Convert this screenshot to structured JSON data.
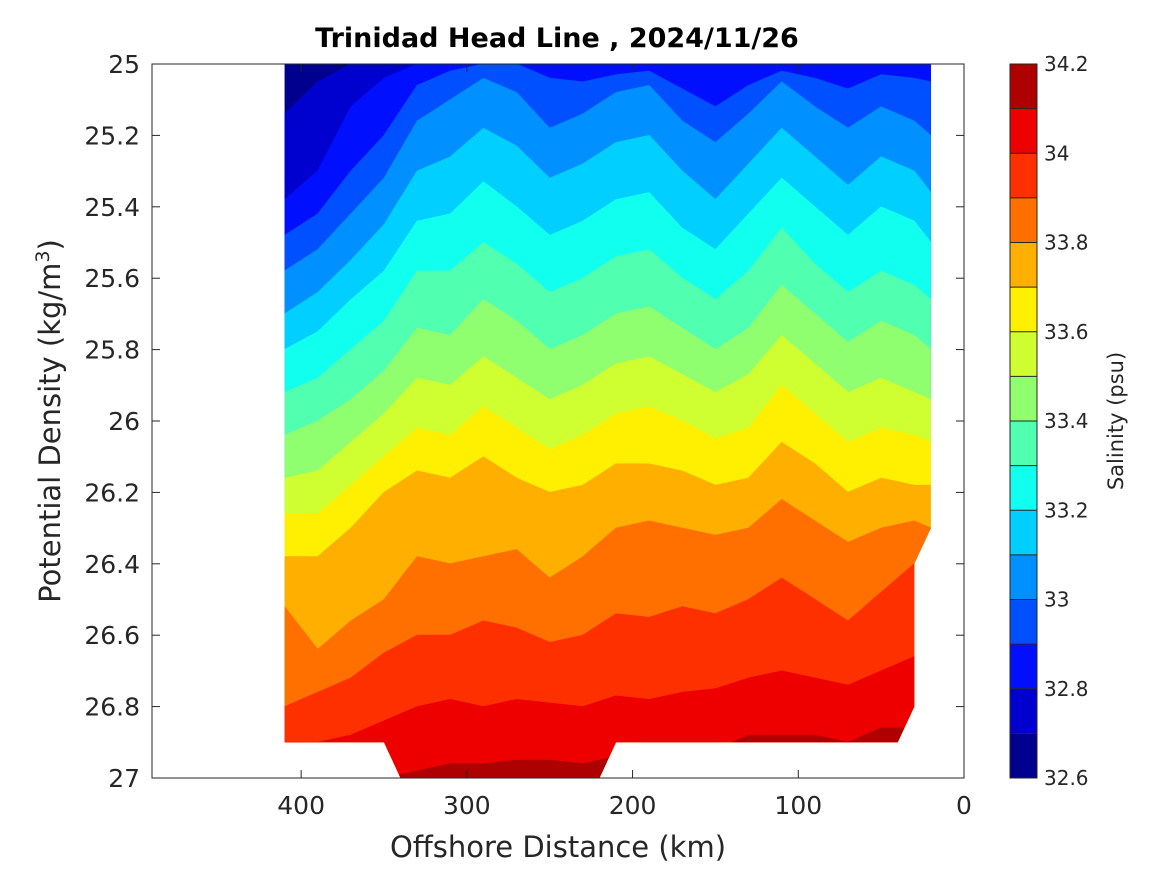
{
  "chart_data": {
    "type": "contour",
    "title": "Trinidad Head Line , 2024/11/26",
    "xlabel": "Offshore Distance (km)",
    "ylabel": "Potential Density (kg/m",
    "ylabel_sup": "3",
    "ylabel_end": ")",
    "xlim": [
      490,
      0
    ],
    "ylim": [
      25,
      27
    ],
    "xticks": [
      400,
      300,
      200,
      100,
      0
    ],
    "yticks": [
      25,
      25.2,
      25.4,
      25.6,
      25.8,
      26,
      26.2,
      26.4,
      26.6,
      26.8,
      27
    ],
    "xtick_labels": [
      "400",
      "300",
      "200",
      "100",
      "0"
    ],
    "ytick_labels": [
      "25",
      "25.2",
      "25.4",
      "25.6",
      "25.8",
      "26",
      "26.2",
      "26.4",
      "26.6",
      "26.8",
      "27"
    ],
    "colorbar": {
      "label": "Salinity (psu)",
      "range": [
        32.6,
        34.2
      ],
      "levels": [
        32.6,
        32.7,
        32.8,
        32.9,
        33.0,
        33.1,
        33.2,
        33.3,
        33.4,
        33.5,
        33.6,
        33.7,
        33.8,
        33.9,
        34.0,
        34.1,
        34.2
      ],
      "colors": [
        "#00008f",
        "#0000cf",
        "#0010ff",
        "#0050ff",
        "#0090ff",
        "#00cfff",
        "#10ffef",
        "#50ffaf",
        "#8fff70",
        "#cfff30",
        "#ffef00",
        "#ffaf00",
        "#ff7000",
        "#ff3000",
        "#ef0000",
        "#af0000"
      ],
      "ticks": [
        32.6,
        32.8,
        33,
        33.2,
        33.4,
        33.6,
        33.8,
        34,
        34.2
      ],
      "tick_labels": [
        "32.6",
        "32.8",
        "33",
        "33.2",
        "33.4",
        "33.6",
        "33.8",
        "34",
        "34.2"
      ]
    },
    "data_extent_km": [
      20,
      410
    ],
    "bottom_density_profile": [
      [
        410,
        26.9
      ],
      [
        350,
        26.9
      ],
      [
        340,
        27.0
      ],
      [
        220,
        27.0
      ],
      [
        210,
        26.9
      ],
      [
        40,
        26.9
      ],
      [
        30,
        26.8
      ],
      [
        30,
        26.4
      ],
      [
        20,
        26.3
      ],
      [
        20,
        25.0
      ]
    ],
    "stations_km": [
      410,
      390,
      370,
      350,
      330,
      310,
      290,
      270,
      250,
      230,
      210,
      190,
      170,
      150,
      130,
      110,
      90,
      70,
      50,
      30,
      20
    ],
    "isohaline_boundaries": [
      {
        "salinity": 32.7,
        "density": [
          25.14,
          25.05,
          25.0,
          25.0,
          25.0,
          25.0,
          25.0,
          25.0,
          25.0,
          25.0,
          25.0,
          25.0,
          25.0,
          25.0,
          25.0,
          25.0,
          25.0,
          25.0,
          25.0,
          25.0,
          25.0
        ]
      },
      {
        "salinity": 32.8,
        "density": [
          25.38,
          25.3,
          25.12,
          25.04,
          25.0,
          25.0,
          25.0,
          25.0,
          25.0,
          25.0,
          25.0,
          25.0,
          25.0,
          25.0,
          25.0,
          25.0,
          25.0,
          25.0,
          25.0,
          25.0,
          25.0
        ]
      },
      {
        "salinity": 32.9,
        "density": [
          25.48,
          25.42,
          25.3,
          25.2,
          25.06,
          25.02,
          25.0,
          25.0,
          25.04,
          25.05,
          25.03,
          25.02,
          25.07,
          25.12,
          25.06,
          25.02,
          25.04,
          25.07,
          25.03,
          25.04,
          25.05
        ]
      },
      {
        "salinity": 33.0,
        "density": [
          25.58,
          25.52,
          25.42,
          25.32,
          25.16,
          25.1,
          25.04,
          25.08,
          25.18,
          25.14,
          25.08,
          25.06,
          25.16,
          25.22,
          25.14,
          25.05,
          25.12,
          25.18,
          25.12,
          25.16,
          25.2
        ]
      },
      {
        "salinity": 33.1,
        "density": [
          25.7,
          25.64,
          25.55,
          25.45,
          25.3,
          25.26,
          25.18,
          25.23,
          25.32,
          25.28,
          25.22,
          25.2,
          25.3,
          25.38,
          25.28,
          25.18,
          25.26,
          25.34,
          25.26,
          25.3,
          25.36
        ]
      },
      {
        "salinity": 33.2,
        "density": [
          25.8,
          25.75,
          25.66,
          25.58,
          25.44,
          25.42,
          25.33,
          25.4,
          25.48,
          25.44,
          25.38,
          25.36,
          25.46,
          25.52,
          25.42,
          25.32,
          25.4,
          25.48,
          25.4,
          25.44,
          25.5
        ]
      },
      {
        "salinity": 33.3,
        "density": [
          25.92,
          25.88,
          25.8,
          25.72,
          25.58,
          25.58,
          25.5,
          25.56,
          25.64,
          25.6,
          25.54,
          25.52,
          25.6,
          25.66,
          25.58,
          25.46,
          25.56,
          25.64,
          25.58,
          25.62,
          25.66
        ]
      },
      {
        "salinity": 33.4,
        "density": [
          26.04,
          26.0,
          25.94,
          25.86,
          25.74,
          25.76,
          25.66,
          25.72,
          25.8,
          25.76,
          25.7,
          25.68,
          25.74,
          25.8,
          25.74,
          25.62,
          25.7,
          25.78,
          25.72,
          25.76,
          25.8
        ]
      },
      {
        "salinity": 33.5,
        "density": [
          26.16,
          26.14,
          26.06,
          25.98,
          25.88,
          25.9,
          25.82,
          25.88,
          25.94,
          25.9,
          25.84,
          25.82,
          25.87,
          25.92,
          25.87,
          25.76,
          25.84,
          25.92,
          25.88,
          25.92,
          25.94
        ]
      },
      {
        "salinity": 33.6,
        "density": [
          26.26,
          26.26,
          26.18,
          26.1,
          26.02,
          26.04,
          25.96,
          26.02,
          26.08,
          26.04,
          25.98,
          25.96,
          26.0,
          26.05,
          26.02,
          25.9,
          25.98,
          26.06,
          26.02,
          26.04,
          26.06
        ]
      },
      {
        "salinity": 33.7,
        "density": [
          26.38,
          26.38,
          26.3,
          26.2,
          26.14,
          26.16,
          26.1,
          26.16,
          26.2,
          26.18,
          26.12,
          26.12,
          26.14,
          26.18,
          26.16,
          26.06,
          26.12,
          26.2,
          26.16,
          26.18,
          26.18
        ]
      },
      {
        "salinity": 33.8,
        "density": [
          26.52,
          26.64,
          26.56,
          26.5,
          26.38,
          26.4,
          26.38,
          26.36,
          26.44,
          26.38,
          26.3,
          26.28,
          26.3,
          26.32,
          26.3,
          26.22,
          26.28,
          26.34,
          26.3,
          26.28,
          26.3
        ]
      },
      {
        "salinity": 33.9,
        "density": [
          26.8,
          26.76,
          26.72,
          26.65,
          26.6,
          26.6,
          26.56,
          26.58,
          26.62,
          26.6,
          26.54,
          26.55,
          26.52,
          26.54,
          26.5,
          26.44,
          26.5,
          26.56,
          26.48,
          26.4,
          26.4
        ]
      },
      {
        "salinity": 34.0,
        "density": [
          26.9,
          26.9,
          26.88,
          26.84,
          26.8,
          26.78,
          26.8,
          26.78,
          26.79,
          26.8,
          26.77,
          26.78,
          26.76,
          26.75,
          26.72,
          26.7,
          26.72,
          26.74,
          26.7,
          26.66,
          26.62
        ]
      },
      {
        "salinity": 34.1,
        "density": [
          27.0,
          27.0,
          27.0,
          27.0,
          26.98,
          26.96,
          26.96,
          26.95,
          26.95,
          26.96,
          26.94,
          26.94,
          26.92,
          26.92,
          26.88,
          26.88,
          26.88,
          26.9,
          26.86,
          26.86,
          26.86
        ]
      }
    ]
  }
}
